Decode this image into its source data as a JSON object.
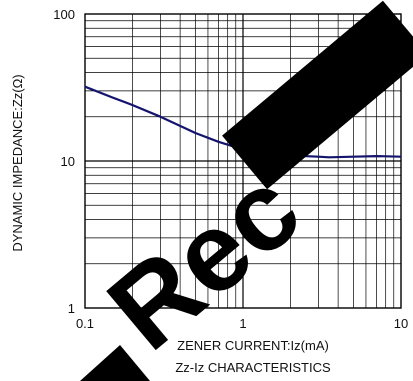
{
  "chart_data": {
    "type": "line",
    "title": "Zz-Iz CHARACTERISTICS",
    "xlabel": "ZENER CURRENT:Iz(mA)",
    "ylabel": "DYNAMIC IMPEDANCE:Zz(Ω)",
    "x_scale": "log",
    "y_scale": "log",
    "xlim": [
      0.1,
      10
    ],
    "ylim": [
      1,
      100
    ],
    "x_ticks": [
      {
        "value": 0.1,
        "label": "0.1"
      },
      {
        "value": 1,
        "label": "1"
      },
      {
        "value": 10,
        "label": "10"
      }
    ],
    "y_ticks": [
      {
        "value": 1,
        "label": "1"
      },
      {
        "value": 10,
        "label": "10"
      },
      {
        "value": 100,
        "label": "100"
      }
    ],
    "grid": true,
    "series": [
      {
        "color": "#14146e",
        "x": [
          0.1,
          0.15,
          0.2,
          0.3,
          0.5,
          0.7,
          1.0,
          1.5,
          2.0,
          3.0,
          3.5,
          5.0,
          7.0,
          10.0
        ],
        "y": [
          32,
          27,
          24,
          20,
          15.5,
          13.5,
          12,
          11.1,
          10.9,
          10.7,
          10.6,
          10.7,
          10.8,
          10.7
        ]
      }
    ],
    "watermark_text": "Not Recommended"
  }
}
